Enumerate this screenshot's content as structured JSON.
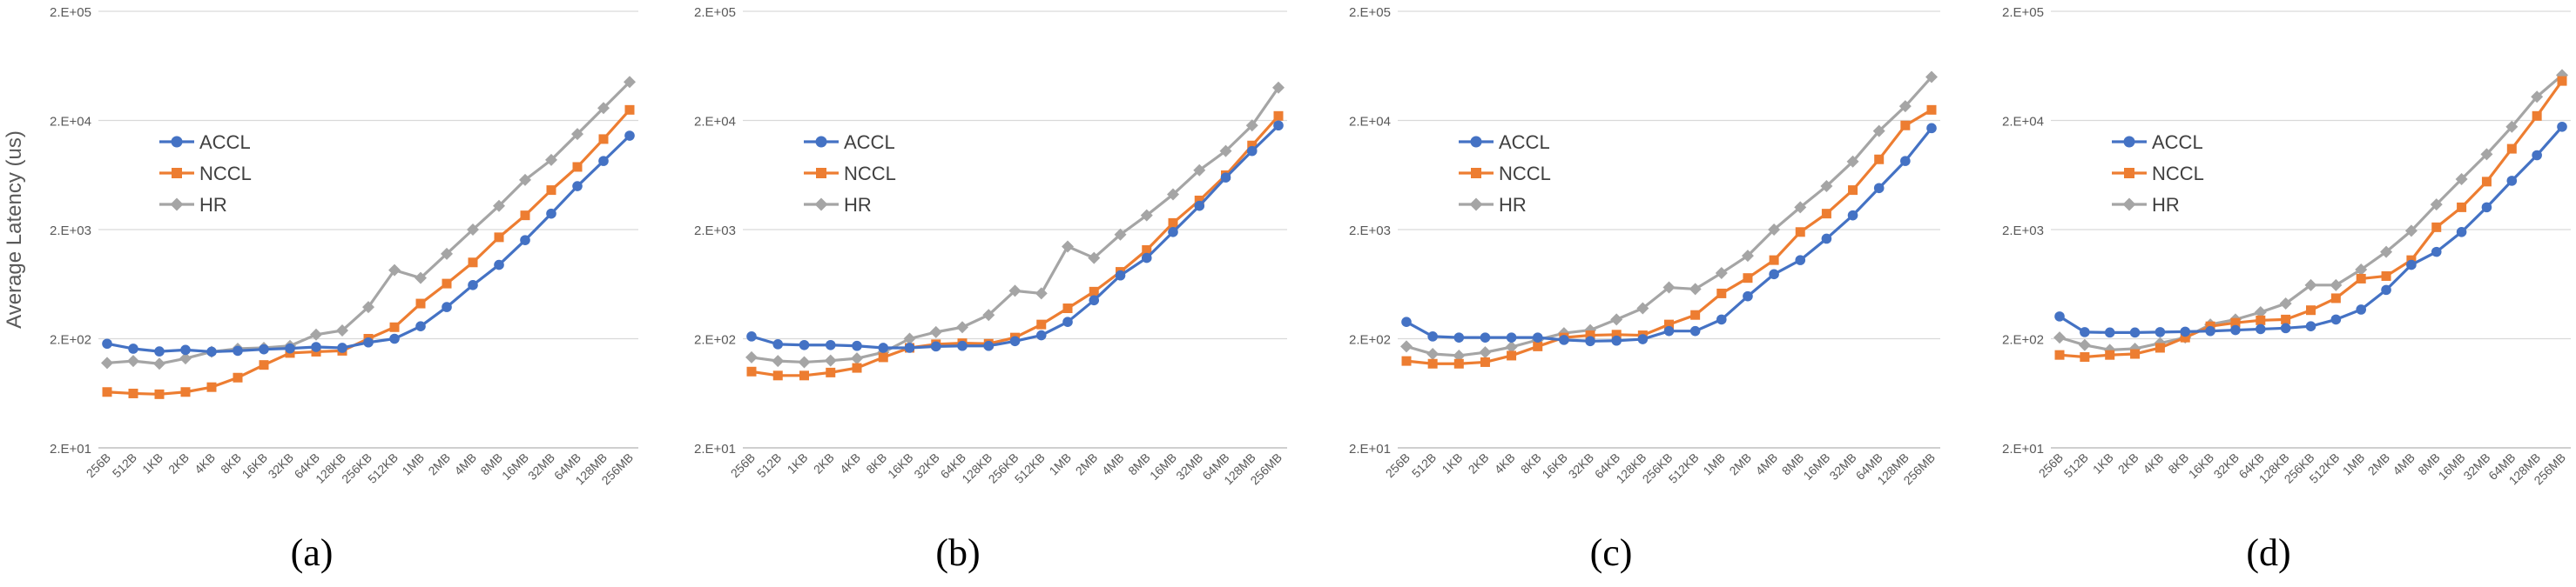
{
  "figure": {
    "y_axis_label": "Average Latency (us)",
    "y_ticks": [
      "2.E+01",
      "2.E+02",
      "2.E+03",
      "2.E+04",
      "2.E+05"
    ],
    "colors": {
      "ACCL": "#4472C4",
      "NCCL": "#ED7D31",
      "HR": "#A5A5A5",
      "grid": "#D9D9D9",
      "axis": "#BFBFBF"
    }
  },
  "chart_data": [
    {
      "type": "line",
      "subplot_label": "(a)",
      "title": "",
      "xlabel": "",
      "ylabel": "Average Latency (us)",
      "yscale": "log",
      "ylim": [
        20,
        200000
      ],
      "y_ticks": [
        20,
        200,
        2000,
        20000,
        200000
      ],
      "legend": "upper-left",
      "categories": [
        "256B",
        "512B",
        "1KB",
        "2KB",
        "4KB",
        "8KB",
        "16KB",
        "32KB",
        "64KB",
        "128KB",
        "256KB",
        "512KB",
        "1MB",
        "2MB",
        "4MB",
        "8MB",
        "16MB",
        "32MB",
        "64MB",
        "128MB",
        "256MB"
      ],
      "series": [
        {
          "name": "ACCL",
          "marker": "circle",
          "values": [
            180,
            162,
            153,
            158,
            152,
            155,
            160,
            163,
            168,
            165,
            185,
            200,
            260,
            390,
            620,
            950,
            1600,
            2800,
            5000,
            8500,
            14500
          ]
        },
        {
          "name": "NCCL",
          "marker": "square",
          "values": [
            65,
            63,
            62,
            65,
            72,
            88,
            115,
            148,
            152,
            155,
            200,
            255,
            420,
            640,
            1000,
            1700,
            2700,
            4600,
            7500,
            13500,
            25000
          ]
        },
        {
          "name": "HR",
          "marker": "diamond",
          "values": [
            120,
            125,
            118,
            132,
            152,
            162,
            165,
            172,
            218,
            238,
            390,
            850,
            720,
            1200,
            2000,
            3300,
            5700,
            8700,
            15000,
            26000,
            45000
          ]
        }
      ]
    },
    {
      "type": "line",
      "subplot_label": "(b)",
      "title": "",
      "xlabel": "",
      "ylabel": "",
      "yscale": "log",
      "ylim": [
        20,
        200000
      ],
      "y_ticks": [
        20,
        200,
        2000,
        20000,
        200000
      ],
      "legend": "upper-left",
      "categories": [
        "256B",
        "512B",
        "1KB",
        "2KB",
        "4KB",
        "8KB",
        "16KB",
        "32KB",
        "64KB",
        "128KB",
        "256KB",
        "512KB",
        "1MB",
        "2MB",
        "4MB",
        "8MB",
        "16MB",
        "32MB",
        "64MB",
        "128MB",
        "256MB"
      ],
      "series": [
        {
          "name": "ACCL",
          "marker": "circle",
          "values": [
            210,
            178,
            175,
            175,
            172,
            165,
            165,
            170,
            172,
            172,
            190,
            215,
            285,
            450,
            760,
            1100,
            1900,
            3300,
            6000,
            10500,
            18000
          ]
        },
        {
          "name": "NCCL",
          "marker": "square",
          "values": [
            100,
            92,
            92,
            98,
            108,
            135,
            165,
            178,
            182,
            180,
            205,
            270,
            380,
            540,
            820,
            1300,
            2300,
            3700,
            6300,
            11800,
            22000
          ]
        },
        {
          "name": "HR",
          "marker": "diamond",
          "values": [
            135,
            125,
            122,
            126,
            132,
            150,
            200,
            230,
            255,
            330,
            550,
            520,
            1400,
            1100,
            1800,
            2700,
            4200,
            7000,
            10500,
            18000,
            40000
          ]
        }
      ]
    },
    {
      "type": "line",
      "subplot_label": "(c)",
      "title": "",
      "xlabel": "",
      "ylabel": "",
      "yscale": "log",
      "ylim": [
        20,
        200000
      ],
      "y_ticks": [
        20,
        200,
        2000,
        20000,
        200000
      ],
      "legend": "upper-left",
      "categories": [
        "256B",
        "512B",
        "1KB",
        "2KB",
        "4KB",
        "8KB",
        "16KB",
        "32KB",
        "64KB",
        "128KB",
        "256KB",
        "512KB",
        "1MB",
        "2MB",
        "4MB",
        "8MB",
        "16MB",
        "32MB",
        "64MB",
        "128MB",
        "256MB"
      ],
      "series": [
        {
          "name": "ACCL",
          "marker": "circle",
          "values": [
            285,
            210,
            205,
            205,
            205,
            205,
            195,
            190,
            192,
            198,
            235,
            235,
            300,
            490,
            780,
            1050,
            1650,
            2700,
            4800,
            8500,
            17000
          ]
        },
        {
          "name": "NCCL",
          "marker": "square",
          "values": [
            125,
            118,
            118,
            122,
            140,
            170,
            205,
            215,
            218,
            215,
            270,
            330,
            520,
            720,
            1050,
            1900,
            2800,
            4600,
            8800,
            18000,
            25000
          ]
        },
        {
          "name": "HR",
          "marker": "diamond",
          "values": [
            170,
            145,
            140,
            150,
            168,
            195,
            225,
            240,
            300,
            380,
            590,
            570,
            800,
            1150,
            2000,
            3200,
            5000,
            8400,
            16000,
            27000,
            50000
          ]
        }
      ]
    },
    {
      "type": "line",
      "subplot_label": "(d)",
      "title": "",
      "xlabel": "",
      "ylabel": "",
      "yscale": "log",
      "ylim": [
        20,
        200000
      ],
      "y_ticks": [
        20,
        200,
        2000,
        20000,
        200000
      ],
      "legend": "upper-left",
      "categories": [
        "256B",
        "512B",
        "1KB",
        "2KB",
        "4KB",
        "8KB",
        "16KB",
        "32KB",
        "64KB",
        "128KB",
        "256KB",
        "512KB",
        "1MB",
        "2MB",
        "4MB",
        "8MB",
        "16MB",
        "32MB",
        "64MB",
        "128MB",
        "256MB"
      ],
      "series": [
        {
          "name": "ACCL",
          "marker": "circle",
          "values": [
            320,
            230,
            228,
            228,
            230,
            232,
            235,
            240,
            245,
            250,
            260,
            300,
            370,
            560,
            950,
            1250,
            1900,
            3200,
            5600,
            9600,
            17500
          ]
        },
        {
          "name": "NCCL",
          "marker": "square",
          "values": [
            142,
            136,
            142,
            145,
            165,
            205,
            260,
            280,
            295,
            300,
            365,
            470,
            710,
            750,
            1050,
            2100,
            3200,
            5500,
            11000,
            22000,
            46000
          ]
        },
        {
          "name": "HR",
          "marker": "diamond",
          "values": [
            205,
            175,
            158,
            162,
            182,
            205,
            270,
            300,
            350,
            420,
            620,
            620,
            860,
            1250,
            1950,
            3400,
            5800,
            9800,
            17500,
            33000,
            52000
          ]
        }
      ]
    }
  ]
}
